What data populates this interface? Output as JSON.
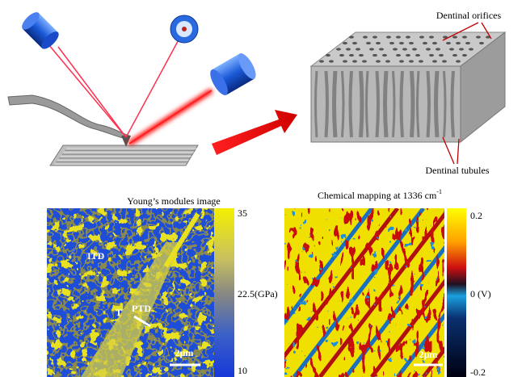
{
  "top_panel": {
    "orifices_label": "Dentinal orifices",
    "tubules_label": "Dentinal tubules"
  },
  "left_map": {
    "title": "Young’s modules image",
    "annotations": [
      "ITD",
      "T",
      "PTD"
    ],
    "scale_bar": "2μm",
    "colorbar_labels": [
      "35",
      "22.5(GPa)",
      "10"
    ]
  },
  "right_map": {
    "title": "Chemical mapping at 1336 cm",
    "title_sup": "-1",
    "scale_bar": "2μm",
    "colorbar_labels": [
      "0.2",
      "0 (V)",
      "-0.2"
    ]
  }
}
